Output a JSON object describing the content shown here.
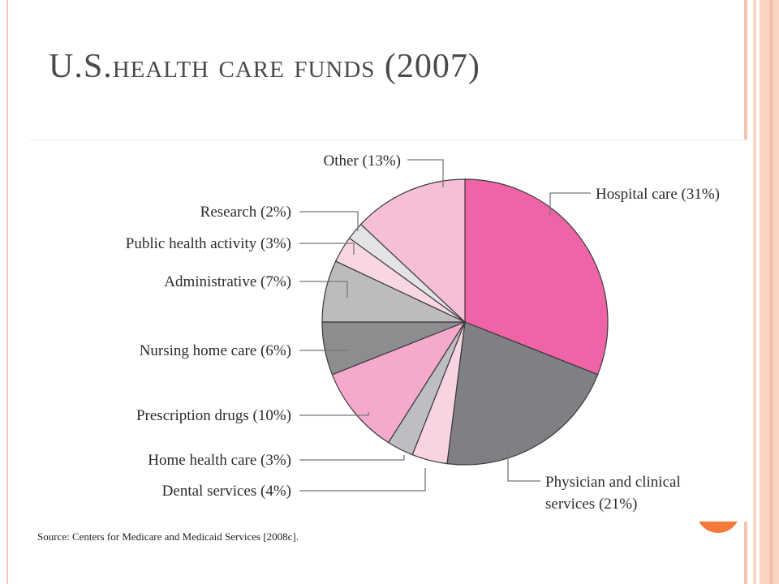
{
  "slide": {
    "title": "U.S.health care funds (2007)",
    "source": "Source:  Centers for Medicare and Medicaid Services [2008c]."
  },
  "colors": {
    "accent": "#f37a3a",
    "frame": "#f6c2b0",
    "title": "#4a4a4a"
  },
  "chart_data": {
    "type": "pie",
    "title": "",
    "unit": "%",
    "slices": [
      {
        "label": "Hospital care (31%)",
        "value": 31,
        "color": "#ef64a6"
      },
      {
        "label": "Physician and clinical services (21%)",
        "label_lines": [
          "Physician and clinical",
          "services (21%)"
        ],
        "value": 21,
        "color": "#808084"
      },
      {
        "label": "Dental services (4%)",
        "value": 4,
        "color": "#f8d3e2"
      },
      {
        "label": "Home health care (3%)",
        "value": 3,
        "color": "#bebec2"
      },
      {
        "label": "Prescription drugs (10%)",
        "value": 10,
        "color": "#f4a9cd"
      },
      {
        "label": "Nursing home care (6%)",
        "value": 6,
        "color": "#8d8d90"
      },
      {
        "label": "Administrative (7%)",
        "value": 7,
        "color": "#bcbcbf"
      },
      {
        "label": "Public health activity (3%)",
        "value": 3,
        "color": "#f9d6e4"
      },
      {
        "label": "Research (2%)",
        "value": 2,
        "color": "#e3e3e5"
      },
      {
        "label": "Other (13%)",
        "value": 13,
        "color": "#f6bfd8"
      }
    ]
  }
}
